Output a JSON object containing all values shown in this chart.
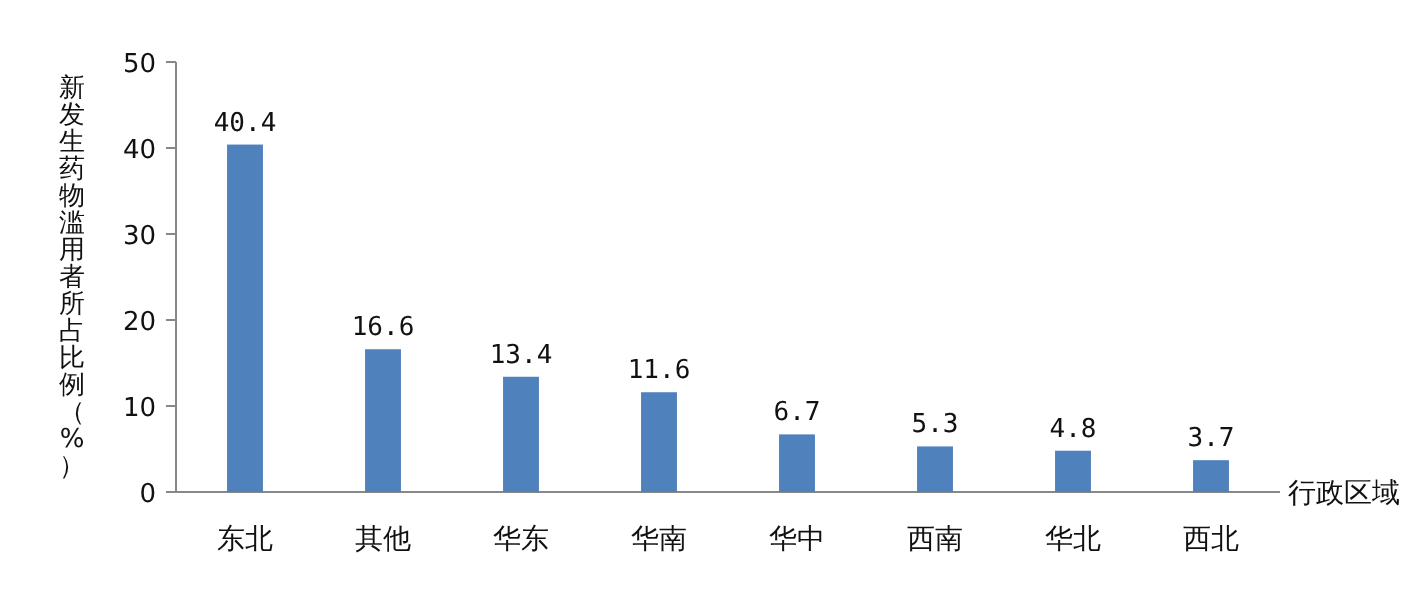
{
  "chart_data": {
    "type": "bar",
    "ylabel": "新发生药物滥用者所占比例（%）",
    "xlabel": "行政区域",
    "categories": [
      "东北",
      "其他",
      "华东",
      "华南",
      "华中",
      "西南",
      "华北",
      "西北"
    ],
    "values": [
      40.4,
      16.6,
      13.4,
      11.6,
      6.7,
      5.3,
      4.8,
      3.7
    ],
    "color": "#4f81bd",
    "ylim": [
      0,
      50
    ],
    "yticks": [
      0,
      10,
      20,
      30,
      40,
      50
    ],
    "data_labels": true
  }
}
